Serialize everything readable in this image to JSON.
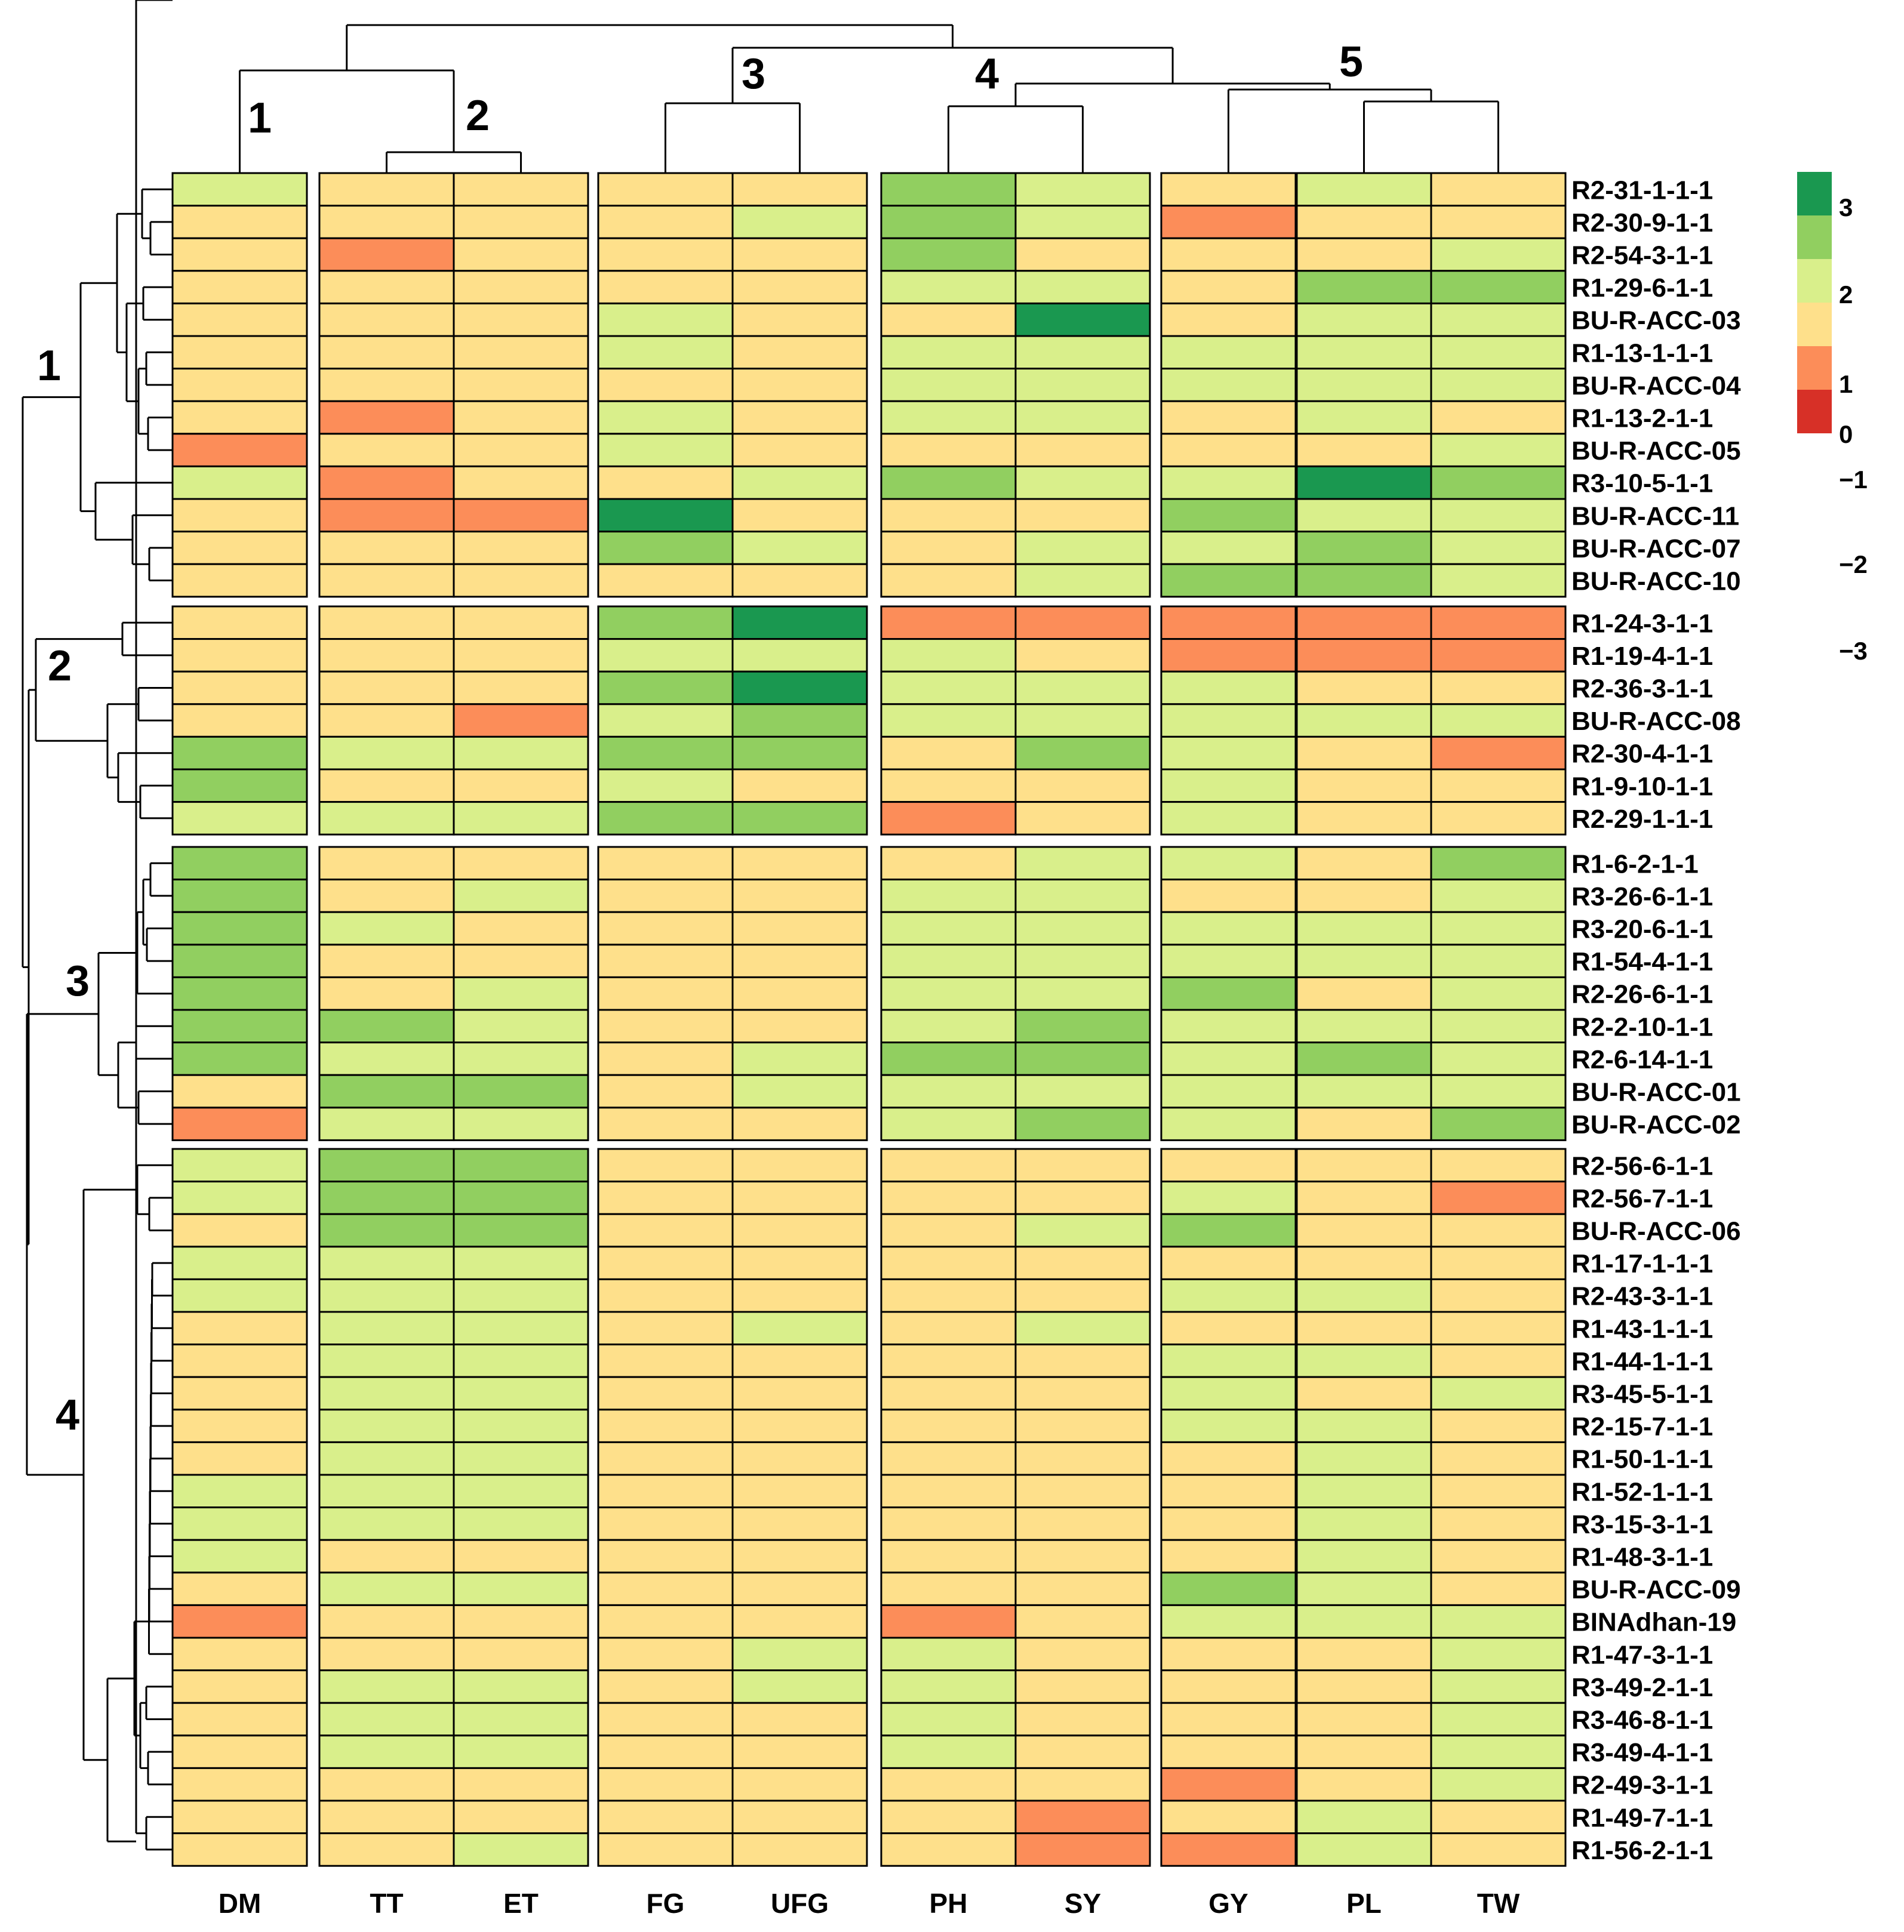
{
  "chart_data": {
    "type": "heatmap",
    "title": "",
    "columns": [
      "DM",
      "TT",
      "ET",
      "FG",
      "UFG",
      "PH",
      "SY",
      "GY",
      "PL",
      "TW"
    ],
    "column_groups": [
      {
        "label": "1",
        "columns": [
          "DM"
        ]
      },
      {
        "label": "2",
        "columns": [
          "TT",
          "ET"
        ]
      },
      {
        "label": "3",
        "columns": [
          "FG",
          "UFG"
        ]
      },
      {
        "label": "4",
        "columns": [
          "PH",
          "SY"
        ]
      },
      {
        "label": "5",
        "columns": [
          "GY",
          "PL",
          "TW"
        ]
      }
    ],
    "row_clusters": [
      {
        "label": "1",
        "rows": [
          "R2-31-1-1-1",
          "R2-30-9-1-1",
          "R2-54-3-1-1",
          "R1-29-6-1-1",
          "BU-R-ACC-03",
          "R1-13-1-1-1",
          "BU-R-ACC-04",
          "R1-13-2-1-1",
          "BU-R-ACC-05",
          "R3-10-5-1-1",
          "BU-R-ACC-11",
          "BU-R-ACC-07",
          "BU-R-ACC-10"
        ]
      },
      {
        "label": "2",
        "rows": [
          "R1-24-3-1-1",
          "R1-19-4-1-1",
          "R2-36-3-1-1",
          "BU-R-ACC-08",
          "R2-30-4-1-1",
          "R1-9-10-1-1",
          "R2-29-1-1-1"
        ]
      },
      {
        "label": "3",
        "rows": [
          "R1-6-2-1-1",
          "R3-26-6-1-1",
          "R3-20-6-1-1",
          "R1-54-4-1-1",
          "R2-26-6-1-1",
          "R2-2-10-1-1",
          "R2-6-14-1-1",
          "BU-R-ACC-01",
          "BU-R-ACC-02"
        ]
      },
      {
        "label": "4",
        "rows": [
          "R2-56-6-1-1",
          "R2-56-7-1-1",
          "BU-R-ACC-06",
          "R1-17-1-1-1",
          "R2-43-3-1-1",
          "R1-43-1-1-1",
          "R1-44-1-1-1",
          "R3-45-5-1-1",
          "R2-15-7-1-1",
          "R1-50-1-1-1",
          "R1-52-1-1-1",
          "R3-15-3-1-1",
          "R1-48-3-1-1",
          "BU-R-ACC-09",
          "BINAdhan-19",
          "R1-47-3-1-1",
          "R3-49-2-1-1",
          "R3-46-8-1-1",
          "R3-49-4-1-1",
          "R2-49-3-1-1",
          "R1-49-7-1-1",
          "R1-56-2-1-1"
        ]
      }
    ],
    "values": [
      [
        0.5,
        -0.5,
        -0.5,
        -0.5,
        -0.5,
        1.5,
        0.5,
        -0.5,
        0.5,
        -0.5
      ],
      [
        -0.5,
        -0.5,
        -0.5,
        -0.5,
        0.5,
        1.5,
        0.5,
        -1.5,
        -0.5,
        -0.5
      ],
      [
        -0.5,
        -1.5,
        -0.5,
        -0.5,
        -0.5,
        1.5,
        -0.5,
        -0.5,
        -0.5,
        0.5
      ],
      [
        -0.5,
        -0.5,
        -0.5,
        -0.5,
        -0.5,
        0.5,
        0.5,
        -0.5,
        1.5,
        1.5
      ],
      [
        -0.5,
        -0.5,
        -0.5,
        0.5,
        -0.5,
        -0.5,
        2.5,
        -0.5,
        0.5,
        0.5
      ],
      [
        -0.5,
        -0.5,
        -0.5,
        0.5,
        -0.5,
        0.5,
        0.5,
        0.5,
        0.5,
        0.5
      ],
      [
        -0.5,
        -0.5,
        -0.5,
        -0.5,
        -0.5,
        0.5,
        0.5,
        0.5,
        0.5,
        0.5
      ],
      [
        -0.5,
        -1.5,
        -0.5,
        0.5,
        -0.5,
        0.5,
        0.5,
        -0.5,
        0.5,
        -0.5
      ],
      [
        -1.5,
        -0.5,
        -0.5,
        0.5,
        -0.5,
        -0.5,
        -0.5,
        -0.5,
        -0.5,
        0.5
      ],
      [
        0.5,
        -1.5,
        -0.5,
        -0.5,
        0.5,
        1.5,
        0.5,
        0.5,
        2.5,
        1.5
      ],
      [
        -0.5,
        -1.5,
        -1.5,
        2.5,
        -0.5,
        -0.5,
        -0.5,
        1.5,
        0.5,
        0.5
      ],
      [
        -0.5,
        -0.5,
        -0.5,
        1.5,
        0.5,
        -0.5,
        0.5,
        0.5,
        1.5,
        0.5
      ],
      [
        -0.5,
        -0.5,
        -0.5,
        -0.5,
        -0.5,
        -0.5,
        0.5,
        1.5,
        1.5,
        0.5
      ],
      [
        -0.5,
        -0.5,
        -0.5,
        1.5,
        2.5,
        -1.5,
        -1.5,
        -1.5,
        -1.5,
        -1.5
      ],
      [
        -0.5,
        -0.5,
        -0.5,
        0.5,
        0.5,
        0.5,
        -0.5,
        -1.5,
        -1.5,
        -1.5
      ],
      [
        -0.5,
        -0.5,
        -0.5,
        1.5,
        2.5,
        0.5,
        0.5,
        0.5,
        -0.5,
        -0.5
      ],
      [
        -0.5,
        -0.5,
        -1.5,
        0.5,
        1.5,
        0.5,
        0.5,
        0.5,
        0.5,
        0.5
      ],
      [
        1.5,
        0.5,
        0.5,
        1.5,
        1.5,
        -0.5,
        1.5,
        0.5,
        -0.5,
        -1.5
      ],
      [
        1.5,
        -0.5,
        -0.5,
        0.5,
        -0.5,
        -0.5,
        -0.5,
        0.5,
        -0.5,
        -0.5
      ],
      [
        0.5,
        0.5,
        0.5,
        1.5,
        1.5,
        -1.5,
        -0.5,
        0.5,
        -0.5,
        -0.5
      ],
      [
        1.5,
        -0.5,
        -0.5,
        -0.5,
        -0.5,
        -0.5,
        0.5,
        0.5,
        -0.5,
        1.5
      ],
      [
        1.5,
        -0.5,
        0.5,
        -0.5,
        -0.5,
        0.5,
        0.5,
        -0.5,
        -0.5,
        0.5
      ],
      [
        1.5,
        0.5,
        -0.5,
        -0.5,
        -0.5,
        0.5,
        0.5,
        0.5,
        0.5,
        0.5
      ],
      [
        1.5,
        -0.5,
        -0.5,
        -0.5,
        -0.5,
        0.5,
        0.5,
        0.5,
        0.5,
        0.5
      ],
      [
        1.5,
        -0.5,
        0.5,
        -0.5,
        -0.5,
        0.5,
        0.5,
        1.5,
        -0.5,
        0.5
      ],
      [
        1.5,
        1.5,
        0.5,
        -0.5,
        -0.5,
        0.5,
        1.5,
        0.5,
        0.5,
        0.5
      ],
      [
        1.5,
        0.5,
        0.5,
        -0.5,
        0.5,
        1.5,
        1.5,
        0.5,
        1.5,
        0.5
      ],
      [
        -0.5,
        1.5,
        1.5,
        -0.5,
        0.5,
        0.5,
        0.5,
        0.5,
        0.5,
        0.5
      ],
      [
        -1.5,
        0.5,
        0.5,
        -0.5,
        -0.5,
        0.5,
        1.5,
        0.5,
        -0.5,
        1.5
      ],
      [
        0.5,
        1.5,
        1.5,
        -0.5,
        -0.5,
        -0.5,
        -0.5,
        -0.5,
        -0.5,
        -0.5
      ],
      [
        0.5,
        1.5,
        1.5,
        -0.5,
        -0.5,
        -0.5,
        -0.5,
        0.5,
        -0.5,
        -1.5
      ],
      [
        -0.5,
        1.5,
        1.5,
        -0.5,
        -0.5,
        -0.5,
        0.5,
        1.5,
        -0.5,
        -0.5
      ],
      [
        0.5,
        0.5,
        0.5,
        -0.5,
        -0.5,
        -0.5,
        -0.5,
        -0.5,
        -0.5,
        -0.5
      ],
      [
        0.5,
        0.5,
        0.5,
        -0.5,
        -0.5,
        -0.5,
        -0.5,
        0.5,
        0.5,
        -0.5
      ],
      [
        -0.5,
        0.5,
        0.5,
        -0.5,
        0.5,
        -0.5,
        0.5,
        -0.5,
        -0.5,
        -0.5
      ],
      [
        -0.5,
        0.5,
        0.5,
        -0.5,
        -0.5,
        -0.5,
        -0.5,
        0.5,
        0.5,
        -0.5
      ],
      [
        -0.5,
        0.5,
        0.5,
        -0.5,
        -0.5,
        -0.5,
        -0.5,
        0.5,
        -0.5,
        0.5
      ],
      [
        -0.5,
        0.5,
        0.5,
        -0.5,
        -0.5,
        -0.5,
        -0.5,
        0.5,
        0.5,
        -0.5
      ],
      [
        -0.5,
        0.5,
        0.5,
        -0.5,
        -0.5,
        -0.5,
        -0.5,
        -0.5,
        0.5,
        -0.5
      ],
      [
        0.5,
        0.5,
        0.5,
        -0.5,
        -0.5,
        -0.5,
        -0.5,
        -0.5,
        0.5,
        -0.5
      ],
      [
        0.5,
        0.5,
        0.5,
        -0.5,
        -0.5,
        -0.5,
        -0.5,
        -0.5,
        0.5,
        -0.5
      ],
      [
        0.5,
        -0.5,
        -0.5,
        -0.5,
        -0.5,
        -0.5,
        -0.5,
        -0.5,
        0.5,
        -0.5
      ],
      [
        -0.5,
        0.5,
        0.5,
        -0.5,
        -0.5,
        -0.5,
        -0.5,
        1.5,
        0.5,
        -0.5
      ],
      [
        -1.5,
        -0.5,
        -0.5,
        -0.5,
        -0.5,
        -1.5,
        -0.5,
        0.5,
        0.5,
        0.5
      ],
      [
        -0.5,
        -0.5,
        -0.5,
        -0.5,
        0.5,
        0.5,
        -0.5,
        -0.5,
        -0.5,
        0.5
      ],
      [
        -0.5,
        0.5,
        0.5,
        -0.5,
        0.5,
        0.5,
        -0.5,
        -0.5,
        -0.5,
        0.5
      ],
      [
        -0.5,
        0.5,
        0.5,
        -0.5,
        -0.5,
        0.5,
        -0.5,
        -0.5,
        -0.5,
        0.5
      ],
      [
        -0.5,
        0.5,
        0.5,
        -0.5,
        -0.5,
        0.5,
        -0.5,
        -0.5,
        -0.5,
        0.5
      ],
      [
        -0.5,
        -0.5,
        -0.5,
        -0.5,
        -0.5,
        -0.5,
        -0.5,
        -1.5,
        -0.5,
        0.5
      ],
      [
        -0.5,
        -0.5,
        -0.5,
        -0.5,
        -0.5,
        -0.5,
        -1.5,
        -0.5,
        0.5,
        -0.5
      ],
      [
        -0.5,
        -0.5,
        0.5,
        -0.5,
        -0.5,
        -0.5,
        -1.5,
        -1.5,
        0.5,
        -0.5
      ]
    ],
    "legend": {
      "position": "right",
      "ticks": [
        "3",
        "2",
        "1",
        "0",
        "−1",
        "−2",
        "−3"
      ],
      "range": [
        -3,
        3
      ],
      "bins": [
        {
          "from": 2,
          "to": 3,
          "color": "#1a9850"
        },
        {
          "from": 1,
          "to": 2,
          "color": "#91cf60"
        },
        {
          "from": 0,
          "to": 1,
          "color": "#d9ef8b"
        },
        {
          "from": -1,
          "to": 0,
          "color": "#fee08b"
        },
        {
          "from": -2,
          "to": -1,
          "color": "#fc8d59"
        },
        {
          "from": -3,
          "to": -2,
          "color": "#d73027"
        }
      ]
    }
  }
}
